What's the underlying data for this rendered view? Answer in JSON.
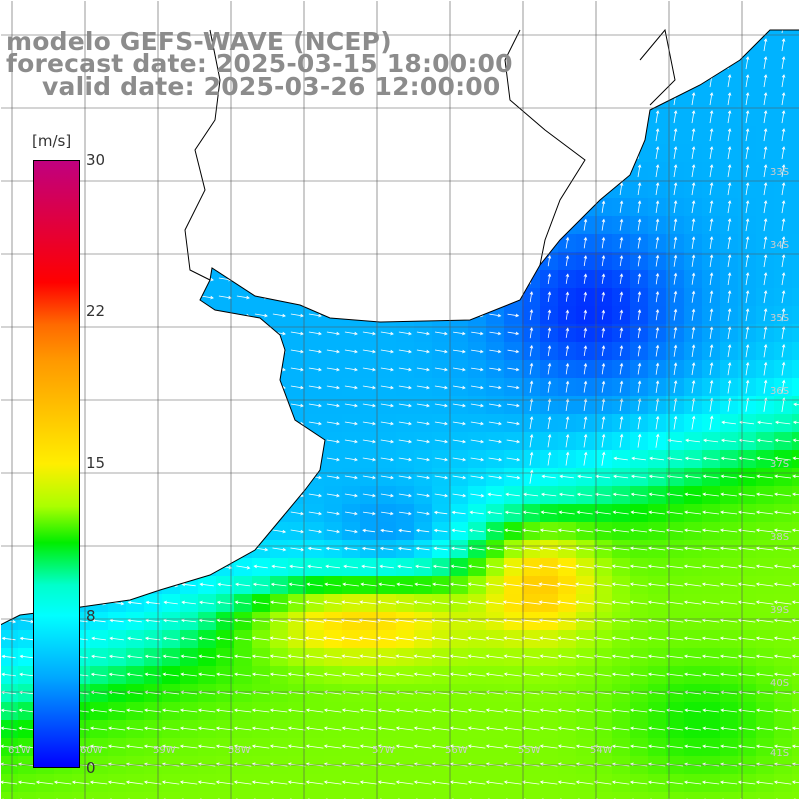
{
  "title": {
    "line1": "modelo GEFS-WAVE (NCEP)",
    "line2": "forecast date: 2025-03-15 18:00:00",
    "line3": "valid date: 2025-03-26 12:00:00"
  },
  "colorbar": {
    "unit": "[m/s]",
    "ticks": [
      {
        "label": "30",
        "value": 30
      },
      {
        "label": "22",
        "value": 22
      },
      {
        "label": "15",
        "value": 15
      },
      {
        "label": "8",
        "value": 8
      },
      {
        "label": "0",
        "value": 0
      }
    ],
    "min": 0,
    "max": 30
  },
  "axes": {
    "lat_labels": [
      "33S",
      "34S",
      "35S",
      "36S",
      "37S",
      "38S",
      "39S",
      "40S",
      "41S"
    ],
    "lon_labels": [
      "61W",
      "60W",
      "59W",
      "58W",
      "57W",
      "56W",
      "55W",
      "54W"
    ]
  },
  "colors": {
    "land": "#ffffff",
    "coastline": "#000000",
    "grid": "#555555",
    "arrow": "#ffffff",
    "title_text": "#8c8c8c"
  }
}
